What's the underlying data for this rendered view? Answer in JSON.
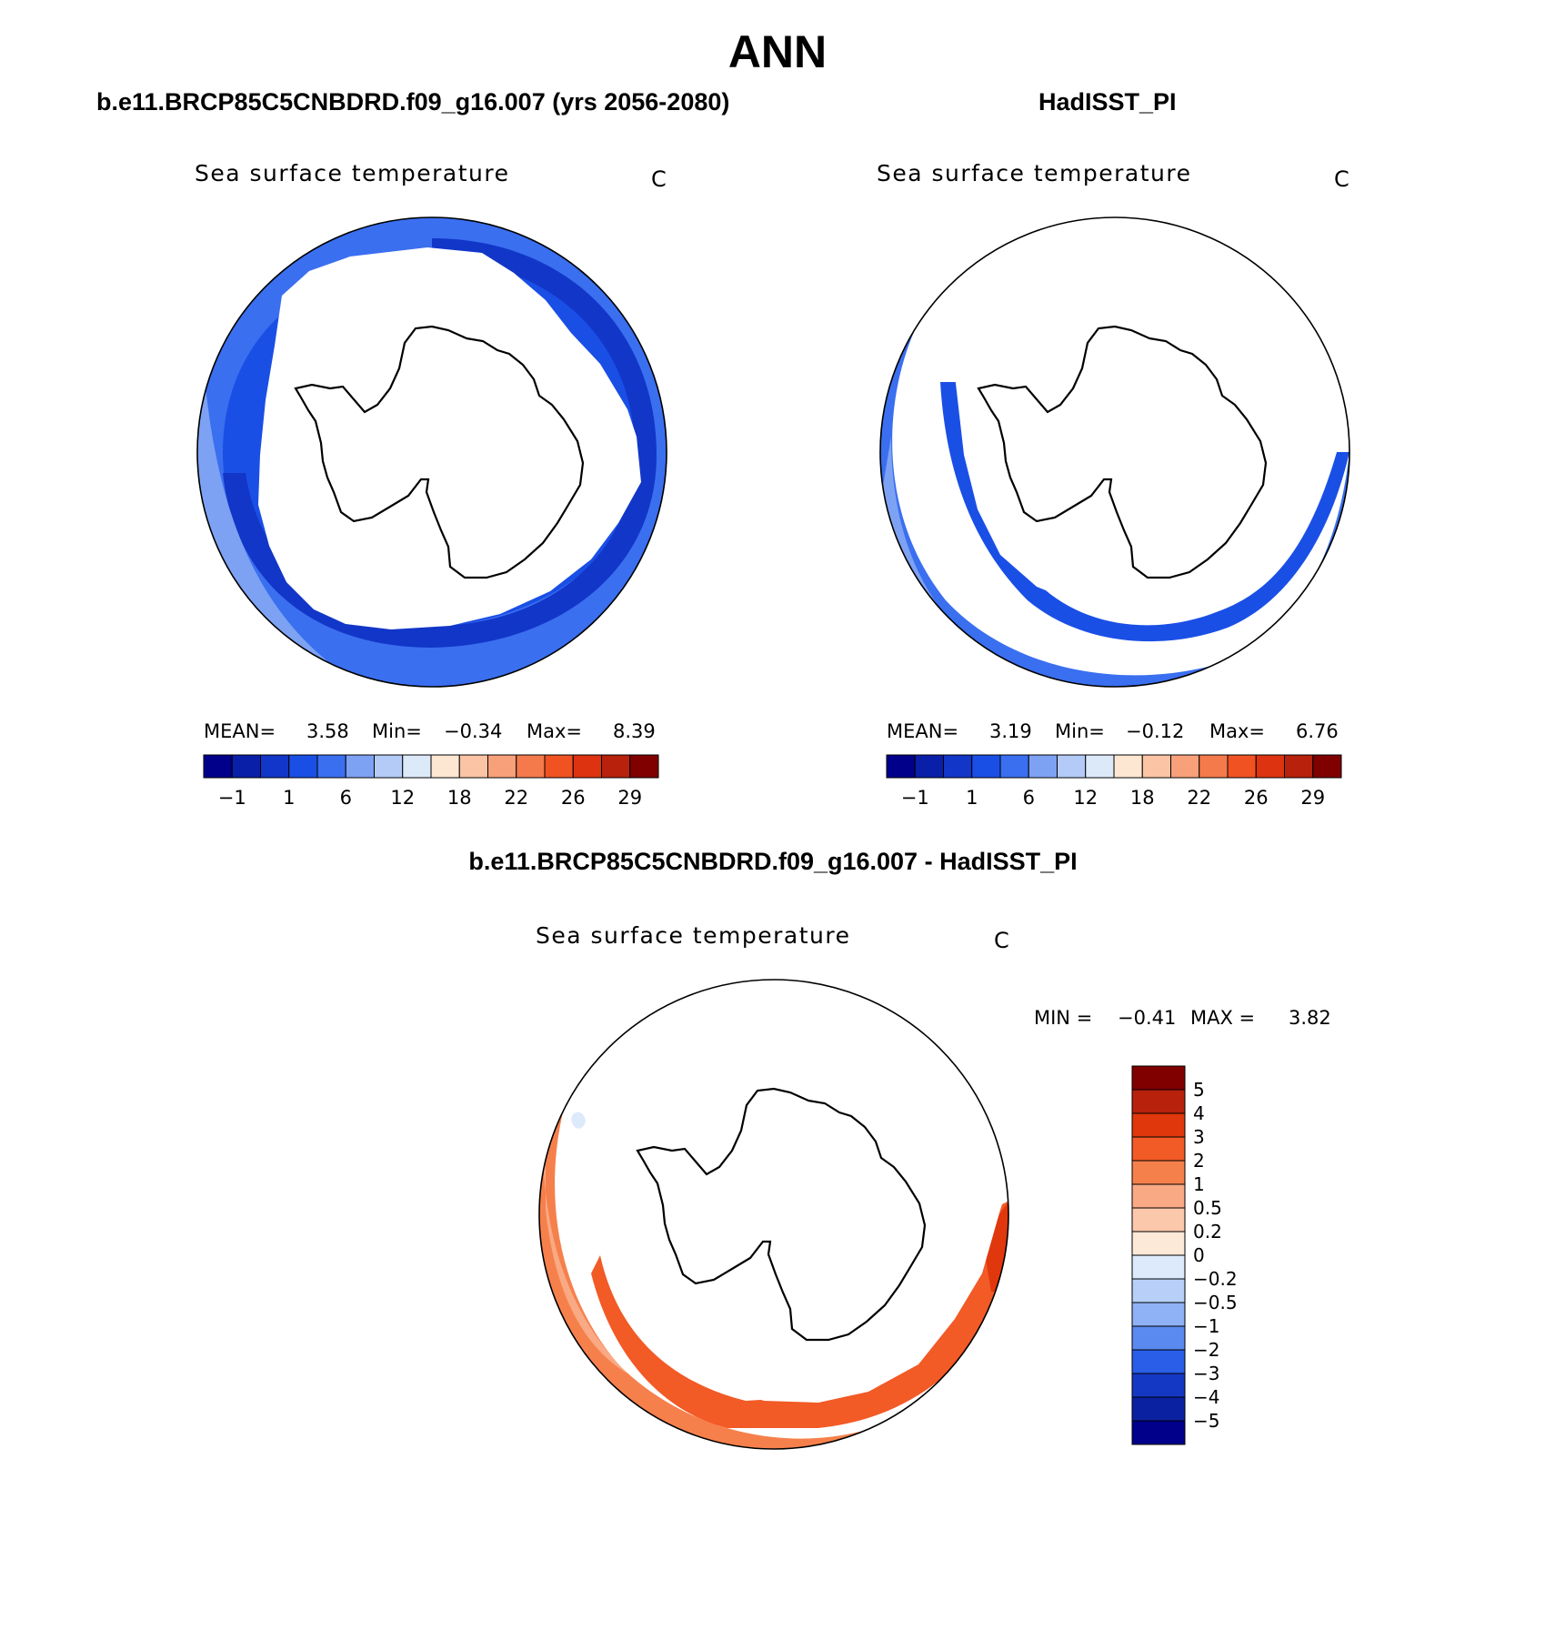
{
  "header": {
    "title": "ANN",
    "case_left": "b.e11.BRCP85C5CNBDRD.f09_g16.007 (yrs 2056-2080)",
    "case_right": "HadISST_PI",
    "diff_title": "b.e11.BRCP85C5CNBDRD.f09_g16.007 - HadISST_PI"
  },
  "panels": {
    "left": {
      "title": "Sea surface temperature",
      "units": "C",
      "mean_label": "MEAN=",
      "mean": "3.58",
      "min_label": "Min=",
      "min": "−0.34",
      "max_label": "Max=",
      "max": "8.39",
      "ticks": [
        "−1",
        "1",
        "6",
        "12",
        "18",
        "22",
        "26",
        "29"
      ]
    },
    "right": {
      "title": "Sea surface temperature",
      "units": "C",
      "mean_label": "MEAN=",
      "mean": "3.19",
      "min_label": "Min=",
      "min": "−0.12",
      "max_label": "Max=",
      "max": "6.76",
      "ticks": [
        "−1",
        "1",
        "6",
        "12",
        "18",
        "22",
        "26",
        "29"
      ]
    },
    "diff": {
      "title": "Sea surface temperature",
      "units": "C",
      "min_label": "MIN =",
      "min": "−0.41",
      "max_label": "MAX =",
      "max": "3.82",
      "levels": [
        "5",
        "4",
        "3",
        "2",
        "1",
        "0.5",
        "0.2",
        "0",
        "−0.2",
        "−0.5",
        "−1",
        "−2",
        "−3",
        "−4",
        "−5"
      ]
    }
  },
  "colors": {
    "abs_palette": [
      "#00008b",
      "#0a1fa8",
      "#1236c8",
      "#1a4fe6",
      "#3a6ff0",
      "#7ea2f3",
      "#b3cbf6",
      "#dce9f9",
      "#fde7d3",
      "#fbc4a4",
      "#f8a07a",
      "#f47a4c",
      "#f05222",
      "#de3310",
      "#b8210b",
      "#800000"
    ],
    "diff_palette": [
      "#800000",
      "#b8210b",
      "#e0380c",
      "#f25a26",
      "#f6804c",
      "#f9aa84",
      "#fcc8ac",
      "#fde9d8",
      "#dceafb",
      "#b8d0f8",
      "#8eb2f5",
      "#5a8af0",
      "#2a5ee8",
      "#1438c4",
      "#0a22a2",
      "#00008b"
    ],
    "ice": "#ffffff",
    "coast": "#000000"
  }
}
